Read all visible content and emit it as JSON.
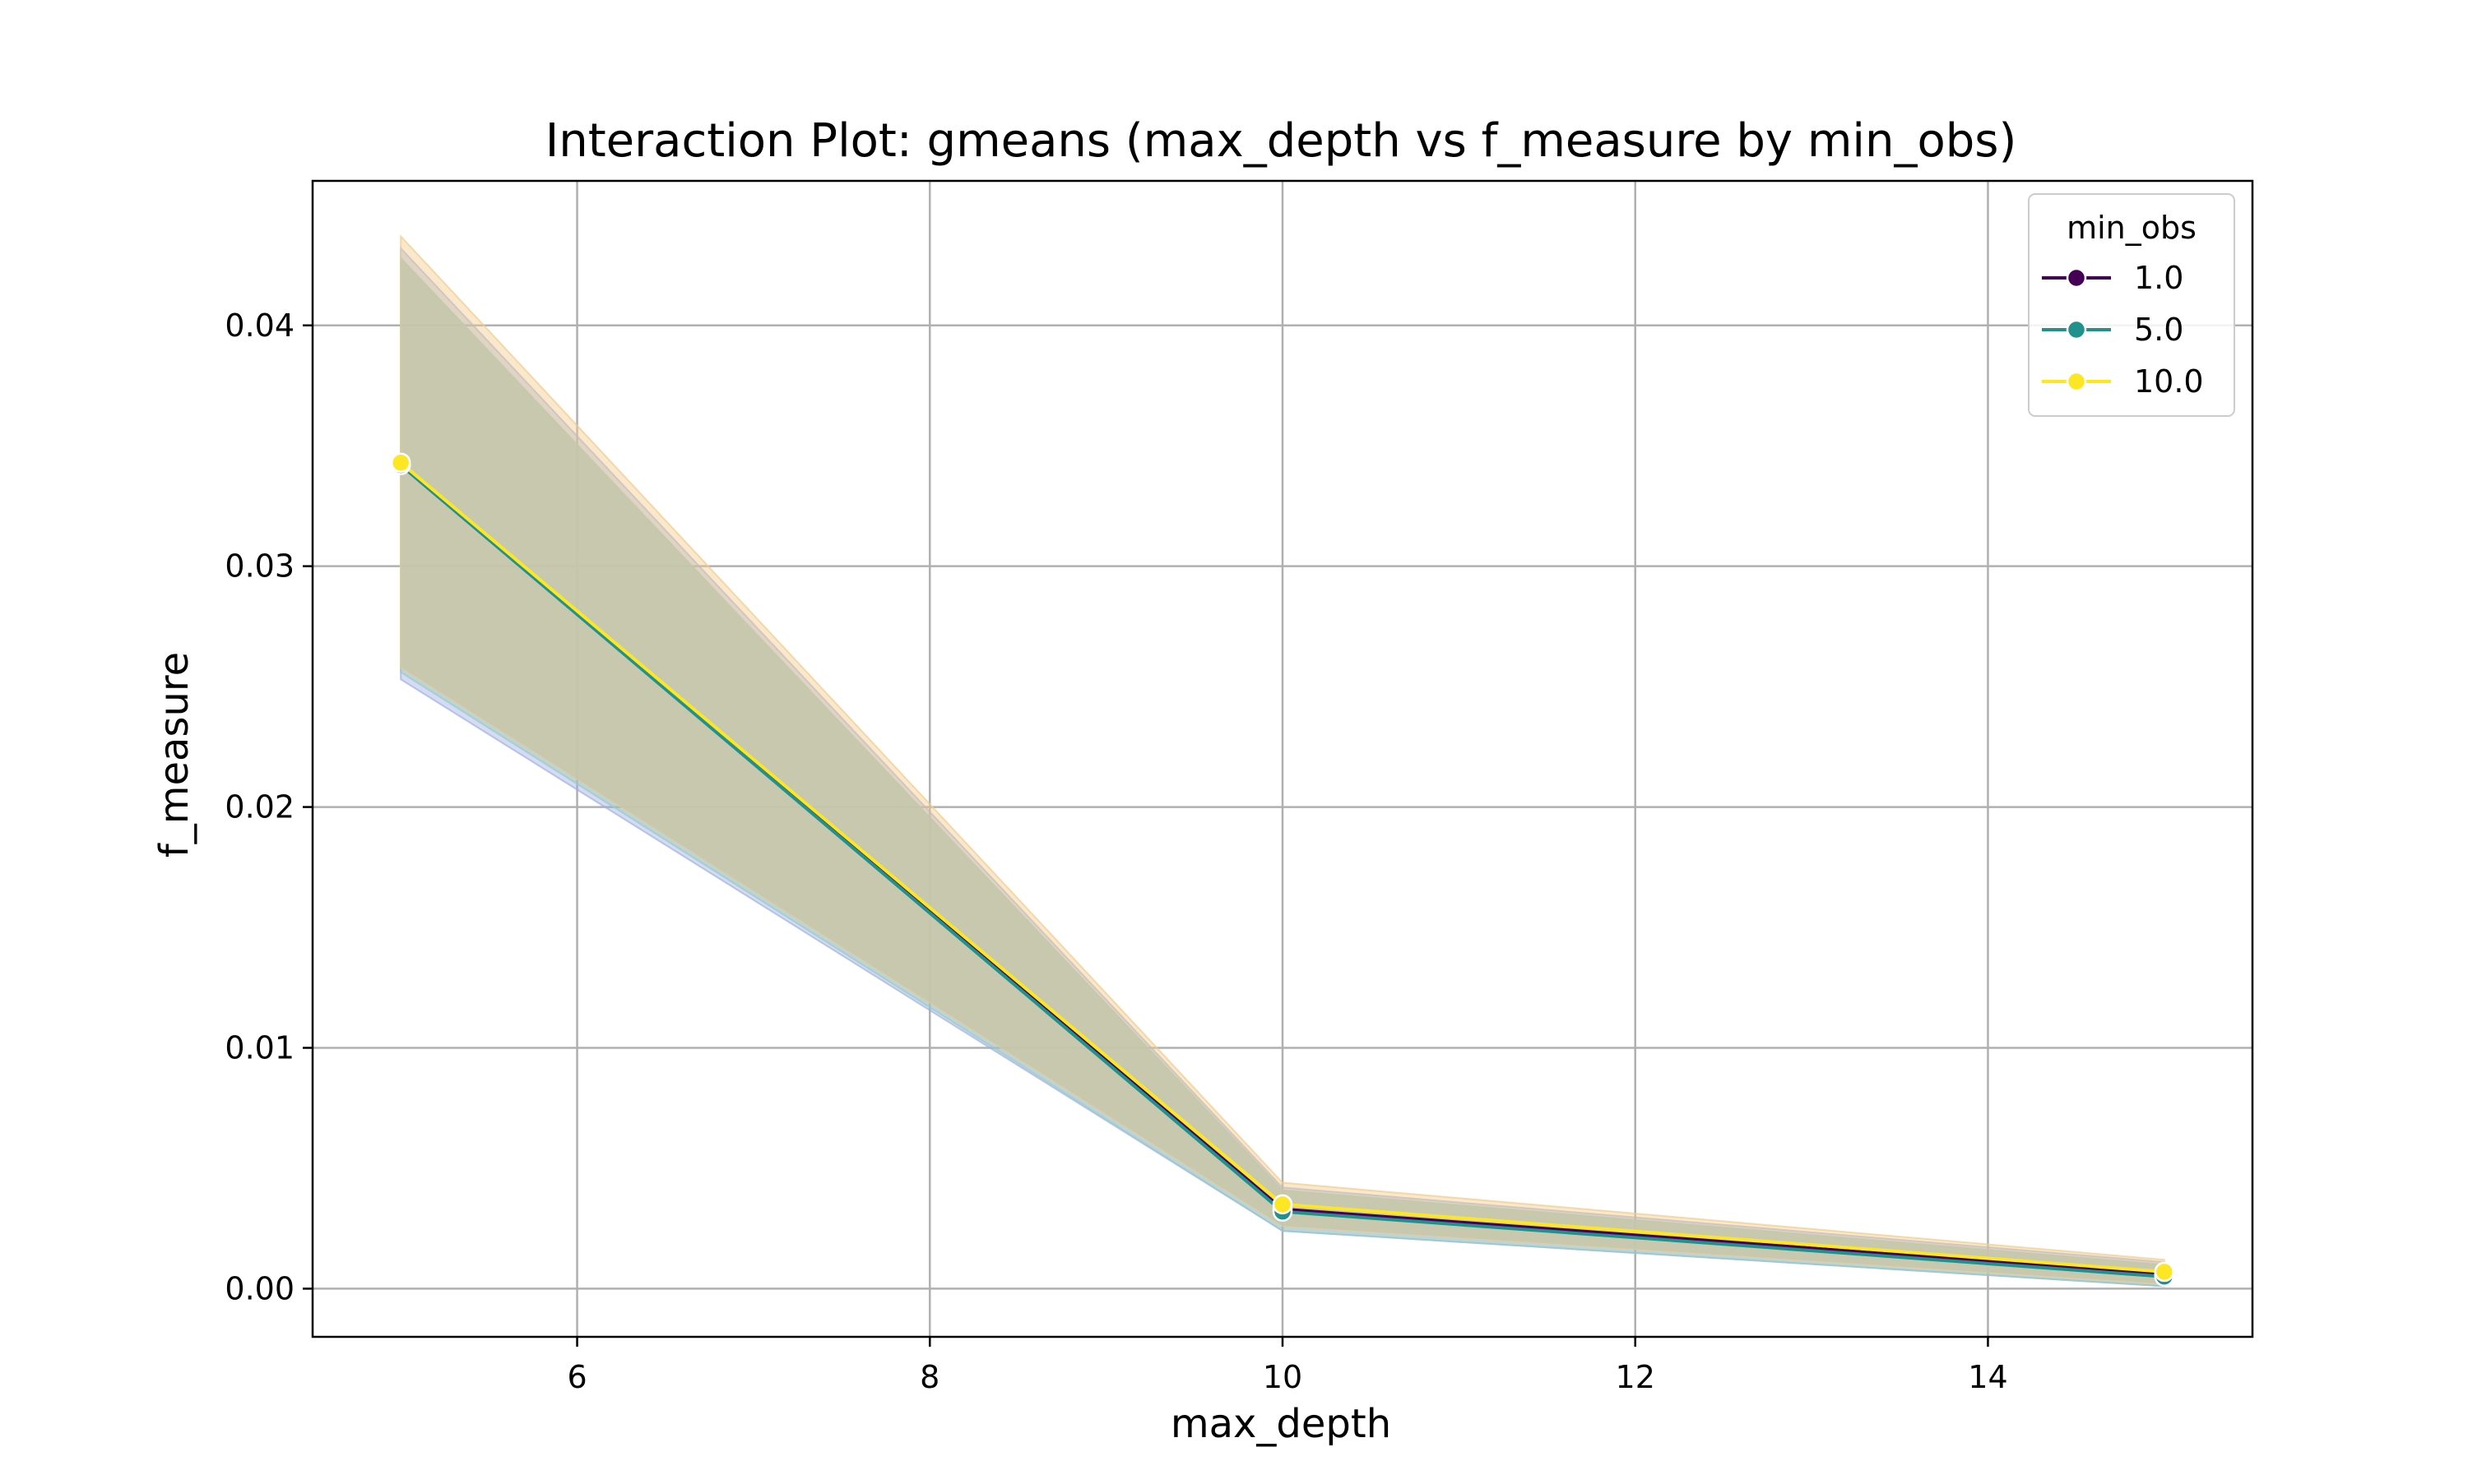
{
  "chart_data": {
    "type": "line",
    "title": "Interaction Plot: gmeans (max_depth vs f_measure by min_obs)",
    "xlabel": "max_depth",
    "ylabel": "f_measure",
    "xlim": [
      4.5,
      15.5
    ],
    "ylim": [
      -0.002,
      0.046
    ],
    "xticks": [
      6,
      8,
      10,
      12,
      14
    ],
    "yticks": [
      0.0,
      0.01,
      0.02,
      0.03,
      0.04
    ],
    "xtick_labels": [
      "6",
      "8",
      "10",
      "12",
      "14"
    ],
    "ytick_labels": [
      "0.00",
      "0.01",
      "0.02",
      "0.03",
      "0.04"
    ],
    "grid": true,
    "legend": {
      "title": "min_obs",
      "position": "top-right"
    },
    "x": [
      5,
      10,
      15
    ],
    "series": [
      {
        "name": "1.0",
        "color": "#440154",
        "values": [
          0.0342,
          0.0033,
          0.0006
        ],
        "ci_lower": [
          0.0253,
          0.0024,
          0.0001
        ],
        "ci_upper": [
          0.0432,
          0.0042,
          0.0011
        ]
      },
      {
        "name": "5.0",
        "color": "#21918c",
        "values": [
          0.0342,
          0.0032,
          0.0005
        ],
        "ci_lower": [
          0.0256,
          0.0024,
          0.0001
        ],
        "ci_upper": [
          0.0428,
          0.0041,
          0.001
        ]
      },
      {
        "name": "10.0",
        "color": "#fde725",
        "values": [
          0.0343,
          0.0035,
          0.0007
        ],
        "ci_lower": [
          0.0258,
          0.0026,
          0.0002
        ],
        "ci_upper": [
          0.0437,
          0.0044,
          0.0012
        ]
      }
    ],
    "band_colors": [
      "#9fb0e3",
      "#9ccbc0",
      "#f2cc8c"
    ],
    "band_fill": "#c3c6ab"
  }
}
